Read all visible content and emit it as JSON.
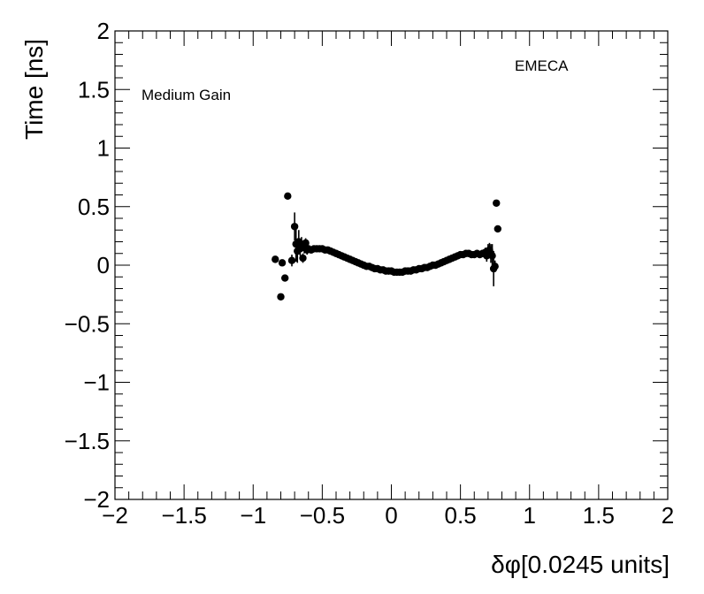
{
  "chart_data": {
    "type": "scatter",
    "title": "",
    "xlabel": "δφ[0.0245 units]",
    "ylabel": "Time [ns]",
    "xlim": [
      -2,
      2
    ],
    "ylim": [
      -2,
      2
    ],
    "x_major_ticks": [
      -2,
      -1.5,
      -1,
      -0.5,
      0,
      0.5,
      1,
      1.5,
      2
    ],
    "y_major_ticks": [
      -2,
      -1.5,
      -1,
      -0.5,
      0,
      0.5,
      1,
      1.5,
      2
    ],
    "x_tick_labels": [
      "−2",
      "−1.5",
      "−1",
      "−0.5",
      "0",
      "0.5",
      "1",
      "1.5",
      "2"
    ],
    "y_tick_labels": [
      "−2",
      "−1.5",
      "−1",
      "−0.5",
      "0",
      "0.5",
      "1",
      "1.5",
      "2"
    ],
    "grid": false,
    "annotations": [
      "Medium Gain",
      "EMECA"
    ],
    "series": [
      {
        "marker": "circle",
        "color": "#000000",
        "points": [
          {
            "x": -0.84,
            "y": 0.05,
            "err": 0.0
          },
          {
            "x": -0.8,
            "y": -0.27,
            "err": 0.0
          },
          {
            "x": -0.79,
            "y": 0.02,
            "err": 0.0
          },
          {
            "x": -0.77,
            "y": -0.11,
            "err": 0.0
          },
          {
            "x": -0.75,
            "y": 0.59,
            "err": 0.0
          },
          {
            "x": -0.72,
            "y": 0.04,
            "err": 0.05
          },
          {
            "x": -0.7,
            "y": 0.33,
            "err": 0.12
          },
          {
            "x": -0.69,
            "y": 0.18,
            "err": 0.15
          },
          {
            "x": -0.68,
            "y": 0.12,
            "err": 0.1
          },
          {
            "x": -0.67,
            "y": 0.2,
            "err": 0.1
          },
          {
            "x": -0.66,
            "y": 0.14,
            "err": 0.06
          },
          {
            "x": -0.65,
            "y": 0.18,
            "err": 0.06
          },
          {
            "x": -0.64,
            "y": 0.06,
            "err": 0.04
          },
          {
            "x": -0.63,
            "y": 0.15,
            "err": 0.05
          },
          {
            "x": -0.62,
            "y": 0.19,
            "err": 0.04
          },
          {
            "x": -0.61,
            "y": 0.13,
            "err": 0.04
          },
          {
            "x": -0.6,
            "y": 0.14,
            "err": 0.03
          },
          {
            "x": -0.58,
            "y": 0.13,
            "err": 0.02
          },
          {
            "x": -0.56,
            "y": 0.14,
            "err": 0.02
          },
          {
            "x": -0.54,
            "y": 0.14,
            "err": 0.01
          },
          {
            "x": -0.52,
            "y": 0.14,
            "err": 0.01
          },
          {
            "x": -0.5,
            "y": 0.14,
            "err": 0.01
          },
          {
            "x": -0.48,
            "y": 0.13,
            "err": 0.01
          },
          {
            "x": -0.46,
            "y": 0.13,
            "err": 0.01
          },
          {
            "x": -0.44,
            "y": 0.12,
            "err": 0.01
          },
          {
            "x": -0.42,
            "y": 0.11,
            "err": 0.01
          },
          {
            "x": -0.4,
            "y": 0.1,
            "err": 0.01
          },
          {
            "x": -0.38,
            "y": 0.09,
            "err": 0.0
          },
          {
            "x": -0.36,
            "y": 0.08,
            "err": 0.0
          },
          {
            "x": -0.34,
            "y": 0.07,
            "err": 0.0
          },
          {
            "x": -0.32,
            "y": 0.06,
            "err": 0.0
          },
          {
            "x": -0.3,
            "y": 0.05,
            "err": 0.0
          },
          {
            "x": -0.28,
            "y": 0.04,
            "err": 0.0
          },
          {
            "x": -0.26,
            "y": 0.03,
            "err": 0.0
          },
          {
            "x": -0.24,
            "y": 0.02,
            "err": 0.0
          },
          {
            "x": -0.22,
            "y": 0.01,
            "err": 0.0
          },
          {
            "x": -0.2,
            "y": 0.0,
            "err": 0.0
          },
          {
            "x": -0.18,
            "y": -0.01,
            "err": 0.0
          },
          {
            "x": -0.16,
            "y": -0.01,
            "err": 0.0
          },
          {
            "x": -0.14,
            "y": -0.02,
            "err": 0.0
          },
          {
            "x": -0.12,
            "y": -0.03,
            "err": 0.0
          },
          {
            "x": -0.1,
            "y": -0.03,
            "err": 0.0
          },
          {
            "x": -0.08,
            "y": -0.04,
            "err": 0.0
          },
          {
            "x": -0.06,
            "y": -0.04,
            "err": 0.0
          },
          {
            "x": -0.04,
            "y": -0.05,
            "err": 0.0
          },
          {
            "x": -0.02,
            "y": -0.05,
            "err": 0.0
          },
          {
            "x": 0.0,
            "y": -0.05,
            "err": 0.0
          },
          {
            "x": 0.02,
            "y": -0.06,
            "err": 0.0
          },
          {
            "x": 0.04,
            "y": -0.06,
            "err": 0.0
          },
          {
            "x": 0.06,
            "y": -0.06,
            "err": 0.0
          },
          {
            "x": 0.08,
            "y": -0.06,
            "err": 0.0
          },
          {
            "x": 0.1,
            "y": -0.05,
            "err": 0.0
          },
          {
            "x": 0.12,
            "y": -0.05,
            "err": 0.0
          },
          {
            "x": 0.14,
            "y": -0.05,
            "err": 0.0
          },
          {
            "x": 0.16,
            "y": -0.04,
            "err": 0.0
          },
          {
            "x": 0.18,
            "y": -0.04,
            "err": 0.0
          },
          {
            "x": 0.2,
            "y": -0.03,
            "err": 0.0
          },
          {
            "x": 0.22,
            "y": -0.03,
            "err": 0.0
          },
          {
            "x": 0.24,
            "y": -0.02,
            "err": 0.0
          },
          {
            "x": 0.26,
            "y": -0.02,
            "err": 0.0
          },
          {
            "x": 0.28,
            "y": -0.01,
            "err": 0.0
          },
          {
            "x": 0.3,
            "y": 0.0,
            "err": 0.0
          },
          {
            "x": 0.32,
            "y": 0.0,
            "err": 0.0
          },
          {
            "x": 0.34,
            "y": 0.01,
            "err": 0.0
          },
          {
            "x": 0.36,
            "y": 0.02,
            "err": 0.0
          },
          {
            "x": 0.38,
            "y": 0.03,
            "err": 0.0
          },
          {
            "x": 0.4,
            "y": 0.04,
            "err": 0.0
          },
          {
            "x": 0.42,
            "y": 0.05,
            "err": 0.0
          },
          {
            "x": 0.44,
            "y": 0.06,
            "err": 0.01
          },
          {
            "x": 0.46,
            "y": 0.07,
            "err": 0.01
          },
          {
            "x": 0.48,
            "y": 0.08,
            "err": 0.01
          },
          {
            "x": 0.5,
            "y": 0.09,
            "err": 0.01
          },
          {
            "x": 0.52,
            "y": 0.09,
            "err": 0.01
          },
          {
            "x": 0.54,
            "y": 0.1,
            "err": 0.01
          },
          {
            "x": 0.56,
            "y": 0.1,
            "err": 0.01
          },
          {
            "x": 0.58,
            "y": 0.09,
            "err": 0.01
          },
          {
            "x": 0.6,
            "y": 0.09,
            "err": 0.01
          },
          {
            "x": 0.62,
            "y": 0.1,
            "err": 0.02
          },
          {
            "x": 0.64,
            "y": 0.09,
            "err": 0.02
          },
          {
            "x": 0.66,
            "y": 0.1,
            "err": 0.03
          },
          {
            "x": 0.68,
            "y": 0.11,
            "err": 0.04
          },
          {
            "x": 0.69,
            "y": 0.08,
            "err": 0.05
          },
          {
            "x": 0.7,
            "y": 0.12,
            "err": 0.06
          },
          {
            "x": 0.71,
            "y": 0.13,
            "err": 0.06
          },
          {
            "x": 0.72,
            "y": 0.1,
            "err": 0.08
          },
          {
            "x": 0.73,
            "y": 0.08,
            "err": 0.1
          },
          {
            "x": 0.74,
            "y": -0.03,
            "err": 0.15
          },
          {
            "x": 0.75,
            "y": -0.01,
            "err": 0.05
          },
          {
            "x": 0.76,
            "y": 0.53,
            "err": 0.0
          },
          {
            "x": 0.77,
            "y": 0.31,
            "err": 0.0
          }
        ]
      }
    ]
  }
}
